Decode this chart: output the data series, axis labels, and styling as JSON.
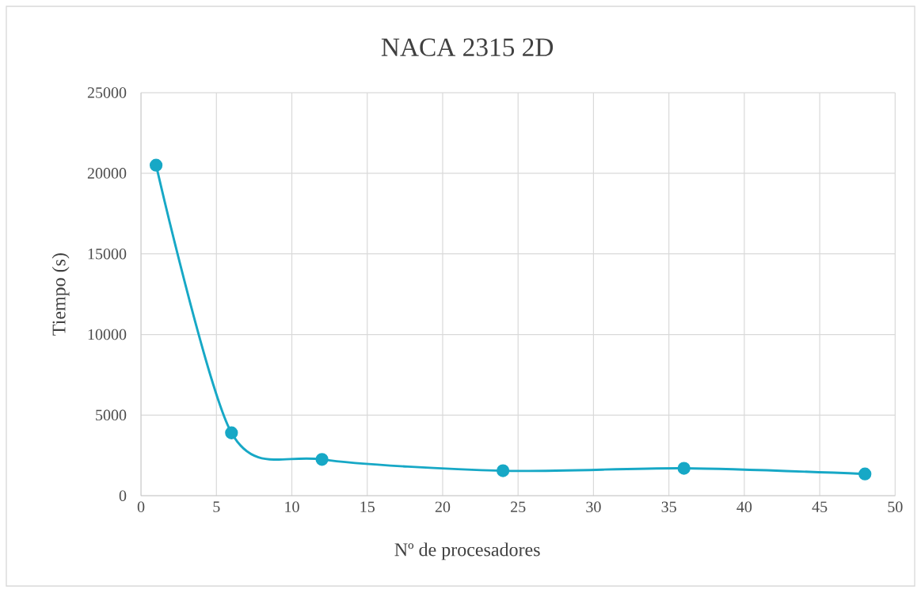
{
  "chart_data": {
    "type": "line",
    "title": "NACA 2315 2D",
    "xlabel": "Nº de procesadores",
    "ylabel": "Tiempo (s)",
    "x": [
      1,
      6,
      12,
      24,
      36,
      48
    ],
    "series": [
      {
        "color": "#17a8c6",
        "values": [
          20500,
          3900,
          2250,
          1550,
          1700,
          1350
        ]
      }
    ],
    "xlim": [
      0,
      50
    ],
    "ylim": [
      0,
      25000
    ],
    "xticks": [
      0,
      5,
      10,
      15,
      20,
      25,
      30,
      35,
      40,
      45,
      50
    ],
    "yticks": [
      0,
      5000,
      10000,
      15000,
      20000,
      25000
    ],
    "grid": true,
    "marker": "circle"
  }
}
